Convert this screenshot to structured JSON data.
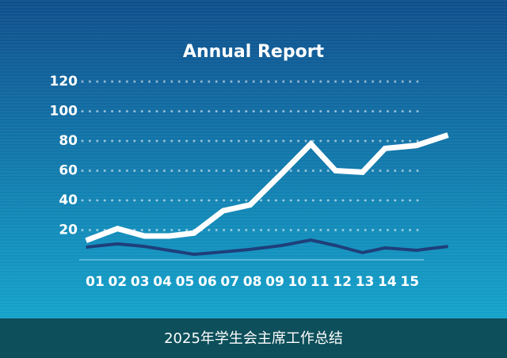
{
  "chart_data": {
    "type": "line",
    "title": "Annual Report",
    "caption": "2025年学生会主席工作总结",
    "xlim": [
      0,
      17
    ],
    "xticks": [
      {
        "value": 1,
        "label": "01"
      },
      {
        "value": 2,
        "label": "02"
      },
      {
        "value": 3,
        "label": "03"
      },
      {
        "value": 4,
        "label": "04"
      },
      {
        "value": 5,
        "label": "05"
      },
      {
        "value": 6,
        "label": "06"
      },
      {
        "value": 7,
        "label": "07"
      },
      {
        "value": 8,
        "label": "08"
      },
      {
        "value": 9,
        "label": "09"
      },
      {
        "value": 10,
        "label": "10"
      },
      {
        "value": 11,
        "label": "11"
      },
      {
        "value": 12,
        "label": "12"
      },
      {
        "value": 13,
        "label": "13"
      },
      {
        "value": 14,
        "label": "14"
      },
      {
        "value": 15,
        "label": "15"
      }
    ],
    "ylim": [
      0,
      120
    ],
    "yticks": [
      20,
      40,
      60,
      80,
      100,
      120
    ],
    "grid": true,
    "series": [
      {
        "color": "#ffffff",
        "x": [
          0.6,
          2,
          3.2,
          4.3,
          5.4,
          6.7,
          7.9,
          9.3,
          10.6,
          11.7,
          12.9,
          13.9,
          15.3,
          16.7
        ],
        "values": [
          13,
          21,
          16,
          16,
          18,
          33,
          37,
          58,
          78,
          60,
          59,
          75,
          77,
          84
        ]
      },
      {
        "color": "#1e3f7a",
        "x": [
          0.6,
          2,
          3.2,
          5.4,
          6.7,
          7.9,
          9.3,
          10.6,
          11.7,
          12.9,
          13.9,
          15.3,
          16.7
        ],
        "values": [
          8.5,
          10.7,
          9,
          3.7,
          5.3,
          7,
          9.6,
          13.3,
          9.6,
          4.8,
          8,
          6.4,
          9
        ]
      }
    ]
  }
}
